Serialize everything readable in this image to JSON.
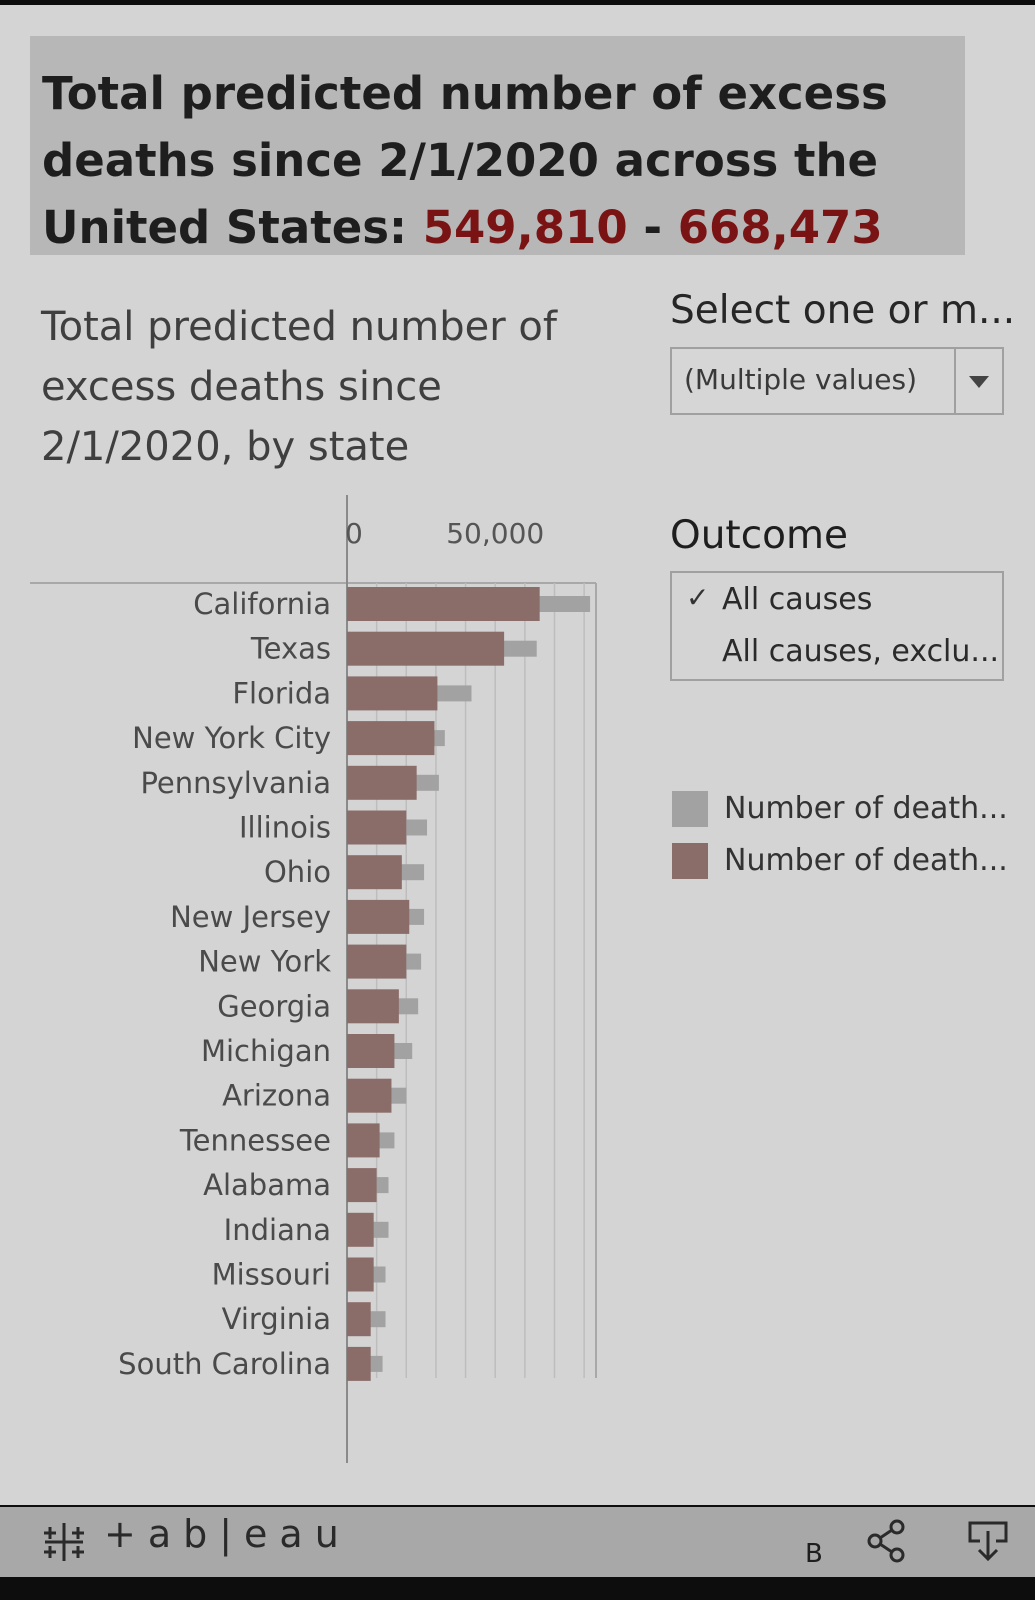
{
  "headline": {
    "text": "Total predicted number of excess deaths since 2/1/2020 across the United States:",
    "low": "549,810",
    "separator": "-",
    "high": "668,473"
  },
  "chart_title": "Total predicted number of excess deaths since 2/1/2020, by state",
  "filter": {
    "title": "Select one or m...",
    "value": "(Multiple values)"
  },
  "outcome": {
    "title": "Outcome",
    "options": [
      {
        "label": "All causes",
        "checked": true
      },
      {
        "label": "All causes, exclu...",
        "checked": false
      }
    ]
  },
  "legend": [
    {
      "label": "Number of death...",
      "color": "#a2a2a2"
    },
    {
      "label": "Number of death...",
      "color": "#8a6d69"
    }
  ],
  "chart_data": {
    "type": "bar",
    "orientation": "horizontal",
    "categories": [
      "California",
      "Texas",
      "Florida",
      "New York City",
      "Pennsylvania",
      "Illinois",
      "Ohio",
      "New Jersey",
      "New York",
      "Georgia",
      "Michigan",
      "Arizona",
      "Tennessee",
      "Alabama",
      "Indiana",
      "Missouri",
      "Virginia",
      "South Carolina"
    ],
    "series": [
      {
        "name": "Number of death...",
        "values": [
          82000,
          64000,
          42000,
          33000,
          31000,
          27000,
          26000,
          26000,
          25000,
          24000,
          22000,
          20000,
          16000,
          14000,
          14000,
          13000,
          13000,
          12000
        ]
      },
      {
        "name": "Number of death...",
        "values": [
          65000,
          53000,
          30500,
          29500,
          23500,
          20000,
          18500,
          21000,
          20000,
          17500,
          16000,
          15000,
          11000,
          10000,
          9000,
          9000,
          8000,
          8000
        ]
      }
    ],
    "xticks": [
      {
        "value": 0,
        "label": "0"
      },
      {
        "value": 50000,
        "label": "50,000"
      }
    ],
    "xlim": [
      0,
      84000
    ],
    "grid": true,
    "colors": {
      "upper": "#a2a2a2",
      "lower": "#8a6d69"
    }
  },
  "footer": {
    "brand": "+ab|eau",
    "letter": "B"
  }
}
